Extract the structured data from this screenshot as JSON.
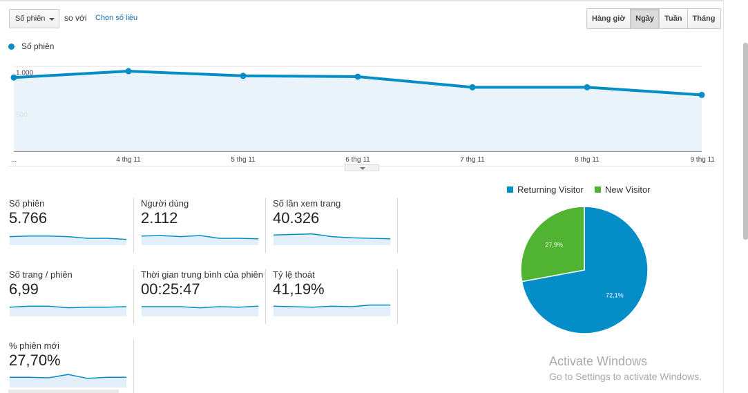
{
  "controls": {
    "metric_select": "Số phiên",
    "compare_text": "so với",
    "choose_link": "Chọn số liệu",
    "granularity": [
      {
        "label": "Hàng giờ",
        "active": false
      },
      {
        "label": "Ngày",
        "active": true
      },
      {
        "label": "Tuần",
        "active": false
      },
      {
        "label": "Tháng",
        "active": false
      }
    ]
  },
  "main_chart": {
    "legend": "Số phiên",
    "y_labels": [
      "1.000",
      "500"
    ],
    "x_labels": [
      "...",
      "4 thg 11",
      "5 thg 11",
      "6 thg 11",
      "7 thg 11",
      "8 thg 11",
      "9 thg 11"
    ],
    "accent": "#058dc7"
  },
  "chart_data": [
    {
      "type": "area",
      "series": [
        {
          "name": "Số phiên",
          "values": [
            870,
            945,
            890,
            880,
            755,
            755,
            665
          ]
        }
      ],
      "categories": [
        "",
        "4 thg 11",
        "5 thg 11",
        "6 thg 11",
        "7 thg 11",
        "8 thg 11",
        "9 thg 11"
      ],
      "ylim": [
        0,
        1100
      ],
      "y_ticks": [
        1000,
        500
      ],
      "grid": true
    },
    {
      "type": "pie",
      "categories": [
        "Returning Visitor",
        "New Visitor"
      ],
      "values": [
        72.1,
        27.9
      ],
      "data_labels": [
        "72,1%",
        "27,9%"
      ],
      "colors": [
        "#058dc7",
        "#50b432"
      ],
      "legend_position": "top"
    }
  ],
  "metrics": [
    {
      "label": "Số phiên",
      "value": "5.766",
      "spark": [
        0.6,
        0.55,
        0.55,
        0.6,
        0.75,
        0.75,
        0.85
      ]
    },
    {
      "label": "Người dùng",
      "value": "2.112",
      "spark": [
        0.55,
        0.5,
        0.6,
        0.5,
        0.75,
        0.75,
        0.8
      ]
    },
    {
      "label": "Số lần xem trang",
      "value": "40.326",
      "spark": [
        0.45,
        0.4,
        0.35,
        0.6,
        0.7,
        0.75,
        0.8
      ]
    },
    {
      "label": "Số trang / phiên",
      "value": "6,99",
      "spark": [
        0.55,
        0.45,
        0.45,
        0.6,
        0.55,
        0.55,
        0.5
      ]
    },
    {
      "label": "Thời gian trung bình của phiên",
      "value": "00:25:47",
      "spark": [
        0.5,
        0.5,
        0.5,
        0.6,
        0.5,
        0.55,
        0.45
      ]
    },
    {
      "label": "Tỷ lệ thoát",
      "value": "41,19%",
      "spark": [
        0.45,
        0.5,
        0.55,
        0.45,
        0.5,
        0.35,
        0.35
      ]
    },
    {
      "label": "% phiên mới",
      "value": "27,70%",
      "spark": [
        0.45,
        0.45,
        0.5,
        0.2,
        0.55,
        0.45,
        0.45
      ]
    }
  ],
  "watermark": {
    "line1": "Activate Windows",
    "line2": "Go to Settings to activate Windows."
  }
}
